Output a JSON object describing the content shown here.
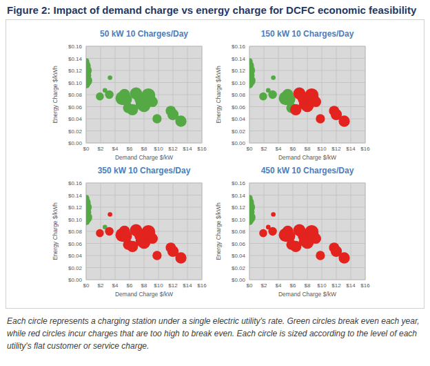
{
  "title": "Figure 2: Impact of demand charge vs energy charge for DCFC economic feasibility",
  "caption": "Each circle represents a charging station under a single electric utility's rate. Green circles break even each year, while red circles incur charges that are too high to break even. Each circle is sized according to the level of each utility's flat customer or service charge.",
  "chart_data": [
    {
      "type": "scatter",
      "title": "50 kW 10 Charges/Day",
      "xlabel": "Demand Charge $/kW",
      "ylabel": "Energy Charge $/kWh",
      "x": [
        0,
        0,
        0,
        0,
        0,
        0,
        1.9,
        2.6,
        3.2,
        3.3,
        5.0,
        5.3,
        5.5,
        5.8,
        6.4,
        6.9,
        7.4,
        7.6,
        8.0,
        8.2,
        8.6,
        8.9,
        9.2,
        7.2,
        9.8,
        11.7,
        12.0,
        13.1
      ],
      "values": [
        0.135,
        0.128,
        0.12,
        0.112,
        0.103,
        0.097,
        0.077,
        0.087,
        0.08,
        0.108,
        0.074,
        0.08,
        0.072,
        0.058,
        0.055,
        0.082,
        0.072,
        0.064,
        0.062,
        0.069,
        0.079,
        0.07,
        0.068,
        0.076,
        0.04,
        0.053,
        0.047,
        0.036
      ],
      "sizes": [
        20,
        40,
        60,
        50,
        70,
        30,
        30,
        10,
        35,
        10,
        90,
        60,
        70,
        50,
        60,
        70,
        50,
        60,
        80,
        50,
        90,
        70,
        50,
        40,
        40,
        50,
        60,
        60
      ],
      "colors": [
        "#55a945",
        "#55a945",
        "#55a945",
        "#55a945",
        "#55a945",
        "#55a945",
        "#55a945",
        "#55a945",
        "#55a945",
        "#55a945",
        "#55a945",
        "#55a945",
        "#55a945",
        "#55a945",
        "#55a945",
        "#55a945",
        "#55a945",
        "#55a945",
        "#55a945",
        "#55a945",
        "#55a945",
        "#55a945",
        "#55a945",
        "#55a945",
        "#55a945",
        "#55a945",
        "#55a945",
        "#55a945"
      ],
      "xlim": [
        0,
        16
      ],
      "ylim": [
        0,
        0.16
      ],
      "xticks": [
        {
          "value": 0,
          "label": "$0"
        },
        {
          "value": 2,
          "label": "$2"
        },
        {
          "value": 4,
          "label": "$4"
        },
        {
          "value": 6,
          "label": "$6"
        },
        {
          "value": 8,
          "label": "$8"
        },
        {
          "value": 10,
          "label": "$10"
        },
        {
          "value": 12,
          "label": "$12"
        },
        {
          "value": 14,
          "label": "$14"
        },
        {
          "value": 16,
          "label": "$16"
        }
      ],
      "yticks": [
        {
          "value": 0,
          "label": "$0.00"
        },
        {
          "value": 0.02,
          "label": "$0.02"
        },
        {
          "value": 0.04,
          "label": "$0.04"
        },
        {
          "value": 0.06,
          "label": "$0.06"
        },
        {
          "value": 0.08,
          "label": "$0.08"
        },
        {
          "value": 0.1,
          "label": "$0.10"
        },
        {
          "value": 0.12,
          "label": "$0.12"
        },
        {
          "value": 0.14,
          "label": "$0.14"
        },
        {
          "value": 0.16,
          "label": "$0.16"
        }
      ],
      "grid": true
    },
    {
      "type": "scatter",
      "title": "150 kW 10 Charges/Day",
      "xlabel": "Demand Charge $/kW",
      "ylabel": "Energy Charge $/kWh",
      "x": [
        0,
        0,
        0,
        0,
        0,
        0,
        1.9,
        2.6,
        3.2,
        3.3,
        5.0,
        5.3,
        5.5,
        5.8,
        6.4,
        6.9,
        7.4,
        7.6,
        8.0,
        8.2,
        8.6,
        8.9,
        9.2,
        7.2,
        9.8,
        11.7,
        12.0,
        13.1
      ],
      "values": [
        0.135,
        0.128,
        0.12,
        0.112,
        0.103,
        0.097,
        0.077,
        0.087,
        0.08,
        0.108,
        0.074,
        0.08,
        0.072,
        0.058,
        0.055,
        0.082,
        0.072,
        0.064,
        0.062,
        0.069,
        0.079,
        0.07,
        0.068,
        0.076,
        0.04,
        0.053,
        0.047,
        0.036
      ],
      "sizes": [
        20,
        40,
        60,
        50,
        70,
        30,
        30,
        10,
        35,
        10,
        90,
        60,
        70,
        50,
        60,
        70,
        50,
        60,
        80,
        50,
        90,
        70,
        50,
        40,
        40,
        50,
        60,
        60
      ],
      "colors": [
        "#55a945",
        "#55a945",
        "#55a945",
        "#55a945",
        "#55a945",
        "#55a945",
        "#55a945",
        "#55a945",
        "#55a945",
        "#55a945",
        "#55a945",
        "#55a945",
        "#55a945",
        "#55a945",
        "#e3231e",
        "#e3231e",
        "#e3231e",
        "#e3231e",
        "#e3231e",
        "#e3231e",
        "#e3231e",
        "#e3231e",
        "#e3231e",
        "#e3231e",
        "#e3231e",
        "#e3231e",
        "#e3231e",
        "#e3231e"
      ],
      "xlim": [
        0,
        16
      ],
      "ylim": [
        0,
        0.16
      ],
      "xticks": [
        {
          "value": 0,
          "label": "$0"
        },
        {
          "value": 2,
          "label": "$2"
        },
        {
          "value": 4,
          "label": "$4"
        },
        {
          "value": 6,
          "label": "$6"
        },
        {
          "value": 8,
          "label": "$8"
        },
        {
          "value": 10,
          "label": "$10"
        },
        {
          "value": 12,
          "label": "$12"
        },
        {
          "value": 14,
          "label": "$14"
        },
        {
          "value": 16,
          "label": "$16"
        }
      ],
      "yticks": [
        {
          "value": 0,
          "label": "$0.00"
        },
        {
          "value": 0.02,
          "label": "$0.02"
        },
        {
          "value": 0.04,
          "label": "$0.04"
        },
        {
          "value": 0.06,
          "label": "$0.06"
        },
        {
          "value": 0.08,
          "label": "$0.08"
        },
        {
          "value": 0.1,
          "label": "$0.10"
        },
        {
          "value": 0.12,
          "label": "$0.12"
        },
        {
          "value": 0.14,
          "label": "$0.14"
        },
        {
          "value": 0.16,
          "label": "$0.16"
        }
      ],
      "grid": true
    },
    {
      "type": "scatter",
      "title": "350 kW 10 Charges/Day",
      "xlabel": "Demand Charge $/kW",
      "ylabel": "Energy Charge $/kWh",
      "x": [
        0,
        0,
        0,
        0,
        0,
        0,
        1.9,
        2.6,
        3.2,
        3.3,
        5.0,
        5.3,
        5.5,
        5.8,
        6.4,
        6.9,
        7.4,
        7.6,
        8.0,
        8.2,
        8.6,
        8.9,
        9.2,
        7.2,
        9.8,
        11.7,
        12.0,
        13.1
      ],
      "values": [
        0.135,
        0.128,
        0.12,
        0.112,
        0.103,
        0.097,
        0.077,
        0.087,
        0.08,
        0.108,
        0.074,
        0.08,
        0.072,
        0.058,
        0.055,
        0.082,
        0.072,
        0.064,
        0.062,
        0.069,
        0.079,
        0.07,
        0.068,
        0.076,
        0.04,
        0.053,
        0.047,
        0.036
      ],
      "sizes": [
        20,
        40,
        60,
        50,
        70,
        30,
        30,
        10,
        35,
        10,
        90,
        60,
        70,
        50,
        60,
        70,
        50,
        60,
        80,
        50,
        90,
        70,
        50,
        40,
        40,
        50,
        60,
        60
      ],
      "colors": [
        "#55a945",
        "#55a945",
        "#55a945",
        "#55a945",
        "#55a945",
        "#55a945",
        "#e3231e",
        "#55a945",
        "#e3231e",
        "#e3231e",
        "#e3231e",
        "#e3231e",
        "#e3231e",
        "#e3231e",
        "#e3231e",
        "#e3231e",
        "#e3231e",
        "#e3231e",
        "#e3231e",
        "#e3231e",
        "#e3231e",
        "#e3231e",
        "#e3231e",
        "#e3231e",
        "#e3231e",
        "#e3231e",
        "#e3231e",
        "#e3231e"
      ],
      "xlim": [
        0,
        16
      ],
      "ylim": [
        0,
        0.16
      ],
      "xticks": [
        {
          "value": 0,
          "label": "$0"
        },
        {
          "value": 2,
          "label": "$2"
        },
        {
          "value": 4,
          "label": "$4"
        },
        {
          "value": 6,
          "label": "$6"
        },
        {
          "value": 8,
          "label": "$8"
        },
        {
          "value": 10,
          "label": "$10"
        },
        {
          "value": 12,
          "label": "$12"
        },
        {
          "value": 14,
          "label": "$14"
        },
        {
          "value": 16,
          "label": "$16"
        }
      ],
      "yticks": [
        {
          "value": 0,
          "label": "$0.00"
        },
        {
          "value": 0.02,
          "label": "$0.02"
        },
        {
          "value": 0.04,
          "label": "$0.04"
        },
        {
          "value": 0.06,
          "label": "$0.06"
        },
        {
          "value": 0.08,
          "label": "$0.08"
        },
        {
          "value": 0.1,
          "label": "$0.10"
        },
        {
          "value": 0.12,
          "label": "$0.12"
        },
        {
          "value": 0.14,
          "label": "$0.14"
        },
        {
          "value": 0.16,
          "label": "$0.16"
        }
      ],
      "grid": true
    },
    {
      "type": "scatter",
      "title": "450 kW 10 Charges/Day",
      "xlabel": "Demand Charge $/kW",
      "ylabel": "Energy Charge $/kWh",
      "x": [
        0,
        0,
        0,
        0,
        0,
        0,
        1.9,
        2.6,
        3.2,
        3.3,
        5.0,
        5.3,
        5.5,
        5.8,
        6.4,
        6.9,
        7.4,
        7.6,
        8.0,
        8.2,
        8.6,
        8.9,
        9.2,
        7.2,
        9.8,
        11.7,
        12.0,
        13.1
      ],
      "values": [
        0.135,
        0.128,
        0.12,
        0.112,
        0.103,
        0.097,
        0.077,
        0.087,
        0.08,
        0.108,
        0.074,
        0.08,
        0.072,
        0.058,
        0.055,
        0.082,
        0.072,
        0.064,
        0.062,
        0.069,
        0.079,
        0.07,
        0.068,
        0.076,
        0.04,
        0.053,
        0.047,
        0.036
      ],
      "sizes": [
        20,
        40,
        60,
        50,
        70,
        30,
        30,
        10,
        35,
        10,
        90,
        60,
        70,
        50,
        60,
        70,
        50,
        60,
        80,
        50,
        90,
        70,
        50,
        40,
        40,
        50,
        60,
        60
      ],
      "colors": [
        "#55a945",
        "#55a945",
        "#55a945",
        "#55a945",
        "#55a945",
        "#55a945",
        "#e3231e",
        "#e3231e",
        "#e3231e",
        "#e3231e",
        "#e3231e",
        "#e3231e",
        "#e3231e",
        "#e3231e",
        "#e3231e",
        "#e3231e",
        "#e3231e",
        "#e3231e",
        "#e3231e",
        "#e3231e",
        "#e3231e",
        "#e3231e",
        "#e3231e",
        "#e3231e",
        "#e3231e",
        "#e3231e",
        "#e3231e",
        "#e3231e"
      ],
      "xlim": [
        0,
        16
      ],
      "ylim": [
        0,
        0.16
      ],
      "xticks": [
        {
          "value": 0,
          "label": "$0"
        },
        {
          "value": 2,
          "label": "$2"
        },
        {
          "value": 4,
          "label": "$4"
        },
        {
          "value": 6,
          "label": "$6"
        },
        {
          "value": 8,
          "label": "$8"
        },
        {
          "value": 10,
          "label": "$10"
        },
        {
          "value": 12,
          "label": "$12"
        },
        {
          "value": 14,
          "label": "$14"
        },
        {
          "value": 16,
          "label": "$16"
        }
      ],
      "yticks": [
        {
          "value": 0,
          "label": "$0.00"
        },
        {
          "value": 0.02,
          "label": "$0.02"
        },
        {
          "value": 0.04,
          "label": "$0.04"
        },
        {
          "value": 0.06,
          "label": "$0.06"
        },
        {
          "value": 0.08,
          "label": "$0.08"
        },
        {
          "value": 0.1,
          "label": "$0.10"
        },
        {
          "value": 0.12,
          "label": "$0.12"
        },
        {
          "value": 0.14,
          "label": "$0.14"
        },
        {
          "value": 0.16,
          "label": "$0.16"
        }
      ],
      "grid": true
    }
  ]
}
